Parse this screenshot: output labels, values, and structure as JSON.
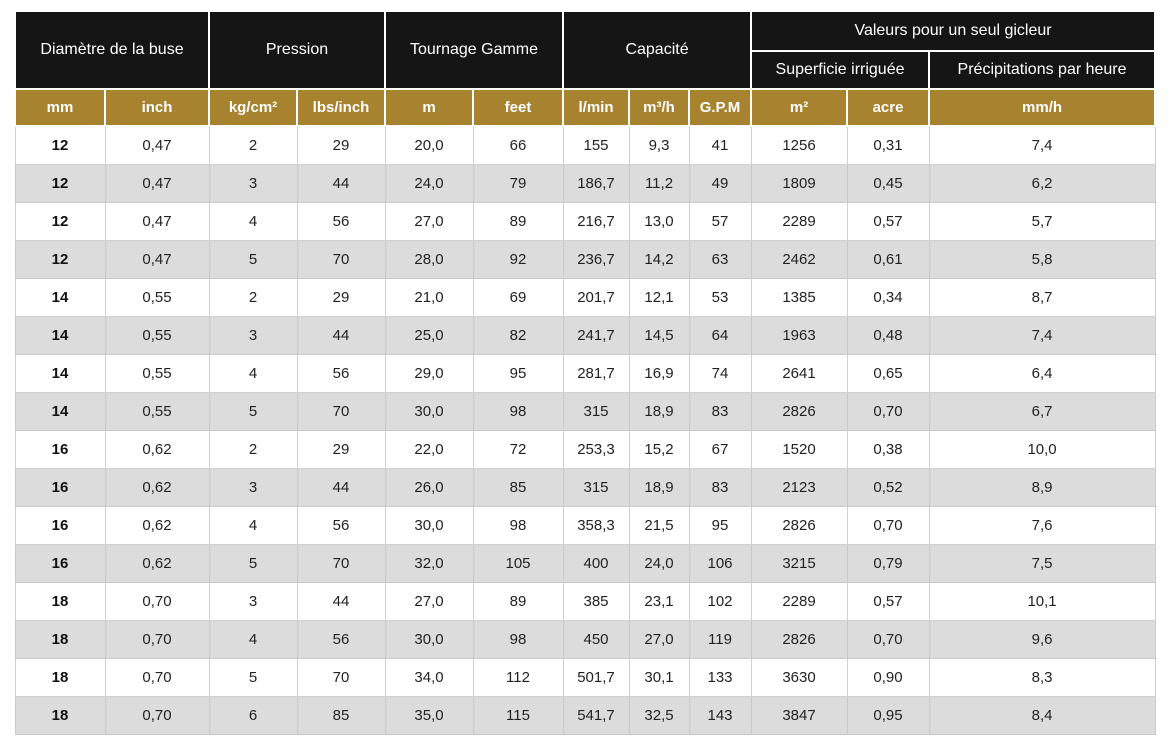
{
  "table": {
    "groups": [
      {
        "label": "Diamètre de la buse"
      },
      {
        "label": "Pression"
      },
      {
        "label": "Tournage Gamme"
      },
      {
        "label": "Capacité"
      },
      {
        "label": "Valeurs pour un seul gicleur"
      }
    ],
    "subgroups": [
      {
        "label": "Superficie irriguée"
      },
      {
        "label": "Précipitations par heure"
      }
    ],
    "units": [
      "mm",
      "inch",
      "kg/cm²",
      "lbs/inch",
      "m",
      "feet",
      "l/min",
      "m³/h",
      "G.P.M",
      "m²",
      "acre",
      "mm/h"
    ],
    "rows": [
      [
        "12",
        "0,47",
        "2",
        "29",
        "20,0",
        "66",
        "155",
        "9,3",
        "41",
        "1256",
        "0,31",
        "7,4"
      ],
      [
        "12",
        "0,47",
        "3",
        "44",
        "24,0",
        "79",
        "186,7",
        "11,2",
        "49",
        "1809",
        "0,45",
        "6,2"
      ],
      [
        "12",
        "0,47",
        "4",
        "56",
        "27,0",
        "89",
        "216,7",
        "13,0",
        "57",
        "2289",
        "0,57",
        "5,7"
      ],
      [
        "12",
        "0,47",
        "5",
        "70",
        "28,0",
        "92",
        "236,7",
        "14,2",
        "63",
        "2462",
        "0,61",
        "5,8"
      ],
      [
        "14",
        "0,55",
        "2",
        "29",
        "21,0",
        "69",
        "201,7",
        "12,1",
        "53",
        "1385",
        "0,34",
        "8,7"
      ],
      [
        "14",
        "0,55",
        "3",
        "44",
        "25,0",
        "82",
        "241,7",
        "14,5",
        "64",
        "1963",
        "0,48",
        "7,4"
      ],
      [
        "14",
        "0,55",
        "4",
        "56",
        "29,0",
        "95",
        "281,7",
        "16,9",
        "74",
        "2641",
        "0,65",
        "6,4"
      ],
      [
        "14",
        "0,55",
        "5",
        "70",
        "30,0",
        "98",
        "315",
        "18,9",
        "83",
        "2826",
        "0,70",
        "6,7"
      ],
      [
        "16",
        "0,62",
        "2",
        "29",
        "22,0",
        "72",
        "253,3",
        "15,2",
        "67",
        "1520",
        "0,38",
        "10,0"
      ],
      [
        "16",
        "0,62",
        "3",
        "44",
        "26,0",
        "85",
        "315",
        "18,9",
        "83",
        "2123",
        "0,52",
        "8,9"
      ],
      [
        "16",
        "0,62",
        "4",
        "56",
        "30,0",
        "98",
        "358,3",
        "21,5",
        "95",
        "2826",
        "0,70",
        "7,6"
      ],
      [
        "16",
        "0,62",
        "5",
        "70",
        "32,0",
        "105",
        "400",
        "24,0",
        "106",
        "3215",
        "0,79",
        "7,5"
      ],
      [
        "18",
        "0,70",
        "3",
        "44",
        "27,0",
        "89",
        "385",
        "23,1",
        "102",
        "2289",
        "0,57",
        "10,1"
      ],
      [
        "18",
        "0,70",
        "4",
        "56",
        "30,0",
        "98",
        "450",
        "27,0",
        "119",
        "2826",
        "0,70",
        "9,6"
      ],
      [
        "18",
        "0,70",
        "5",
        "70",
        "34,0",
        "112",
        "501,7",
        "30,1",
        "133",
        "3630",
        "0,90",
        "8,3"
      ],
      [
        "18",
        "0,70",
        "6",
        "85",
        "35,0",
        "115",
        "541,7",
        "32,5",
        "143",
        "3847",
        "0,95",
        "8,4"
      ]
    ]
  },
  "colors": {
    "header_bg": "#151515",
    "unit_bg": "#a8832f",
    "stripe_bg": "#dcdcdc",
    "header_text": "#ffffff"
  }
}
